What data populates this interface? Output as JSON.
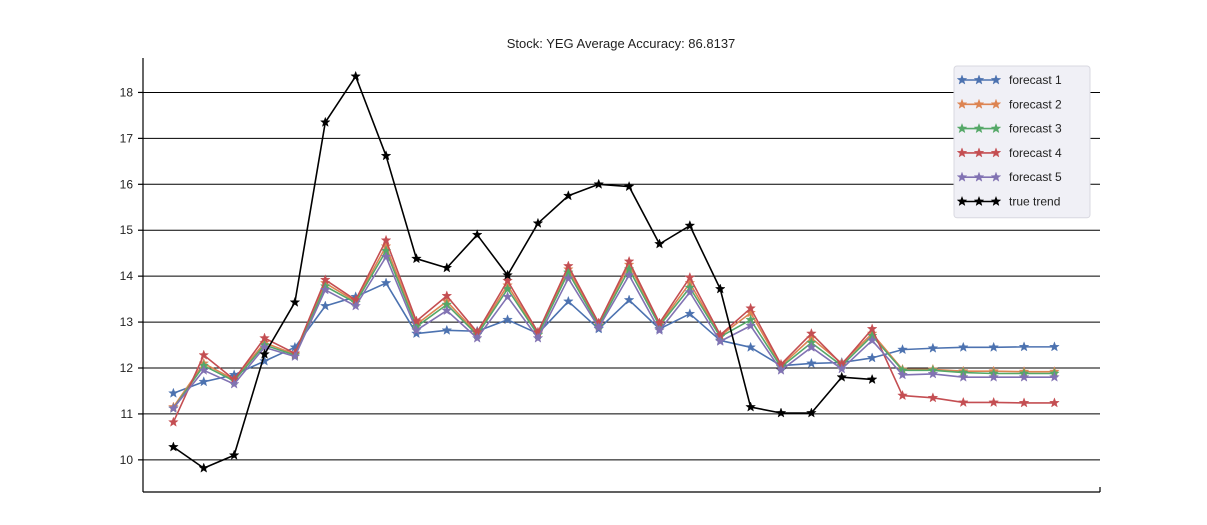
{
  "chart_data": {
    "type": "line",
    "title": "Stock: YEG Average Accuracy: 86.8137",
    "xlabel": "",
    "ylabel": "",
    "ylim": [
      9.3,
      18.75
    ],
    "xlim": [
      -1,
      30.5
    ],
    "yticks": [
      10,
      11,
      12,
      13,
      14,
      15,
      16,
      17,
      18
    ],
    "grid": true,
    "legend_position": "top-right",
    "marker": "star",
    "series": [
      {
        "name": "forecast 1",
        "color": "#4c72b0",
        "values": [
          11.45,
          11.7,
          11.85,
          12.15,
          12.45,
          13.35,
          13.55,
          13.85,
          12.75,
          12.82,
          12.8,
          13.05,
          12.75,
          13.45,
          12.85,
          13.48,
          12.85,
          13.18,
          12.6,
          12.45,
          12.05,
          12.1,
          12.12,
          12.22,
          12.4,
          12.43,
          12.45,
          12.45,
          12.46,
          12.46
        ]
      },
      {
        "name": "forecast 2",
        "color": "#dd8452",
        "values": [
          11.15,
          12.1,
          11.75,
          12.55,
          12.3,
          13.85,
          13.45,
          14.65,
          12.95,
          13.45,
          12.75,
          13.8,
          12.75,
          14.15,
          12.95,
          14.25,
          12.95,
          13.85,
          12.7,
          13.2,
          12.05,
          12.65,
          12.1,
          12.75,
          11.97,
          11.97,
          11.93,
          11.93,
          11.92,
          11.92
        ]
      },
      {
        "name": "forecast 3",
        "color": "#55a868",
        "values": [
          11.12,
          12.05,
          11.72,
          12.5,
          12.28,
          13.78,
          13.42,
          14.55,
          12.9,
          13.38,
          12.72,
          13.72,
          12.72,
          14.08,
          12.92,
          14.15,
          12.92,
          13.75,
          12.68,
          13.05,
          12.02,
          12.55,
          12.05,
          12.7,
          11.95,
          11.95,
          11.9,
          11.88,
          11.88,
          11.88
        ]
      },
      {
        "name": "forecast 4",
        "color": "#c44e52",
        "values": [
          10.82,
          12.28,
          11.75,
          12.65,
          12.32,
          13.92,
          13.48,
          14.78,
          13.02,
          13.57,
          12.78,
          13.9,
          12.78,
          14.22,
          12.98,
          14.32,
          12.98,
          13.97,
          12.72,
          13.3,
          12.08,
          12.75,
          12.08,
          12.85,
          11.4,
          11.35,
          11.25,
          11.25,
          11.24,
          11.24
        ]
      },
      {
        "name": "forecast 5",
        "color": "#8172b3",
        "values": [
          11.12,
          11.95,
          11.65,
          12.45,
          12.25,
          13.7,
          13.35,
          14.42,
          12.82,
          13.25,
          12.65,
          13.55,
          12.65,
          13.95,
          12.88,
          14.02,
          12.82,
          13.65,
          12.58,
          12.92,
          11.95,
          12.45,
          11.98,
          12.6,
          11.85,
          11.87,
          11.8,
          11.8,
          11.8,
          11.8
        ]
      },
      {
        "name": "true trend",
        "color": "#000000",
        "values": [
          10.28,
          9.82,
          10.1,
          12.3,
          13.43,
          17.35,
          18.35,
          16.62,
          14.38,
          14.18,
          14.9,
          14.02,
          15.15,
          15.75,
          16.0,
          15.95,
          14.7,
          15.1,
          13.72,
          11.15,
          11.02,
          11.02,
          11.8,
          11.75
        ]
      }
    ]
  }
}
